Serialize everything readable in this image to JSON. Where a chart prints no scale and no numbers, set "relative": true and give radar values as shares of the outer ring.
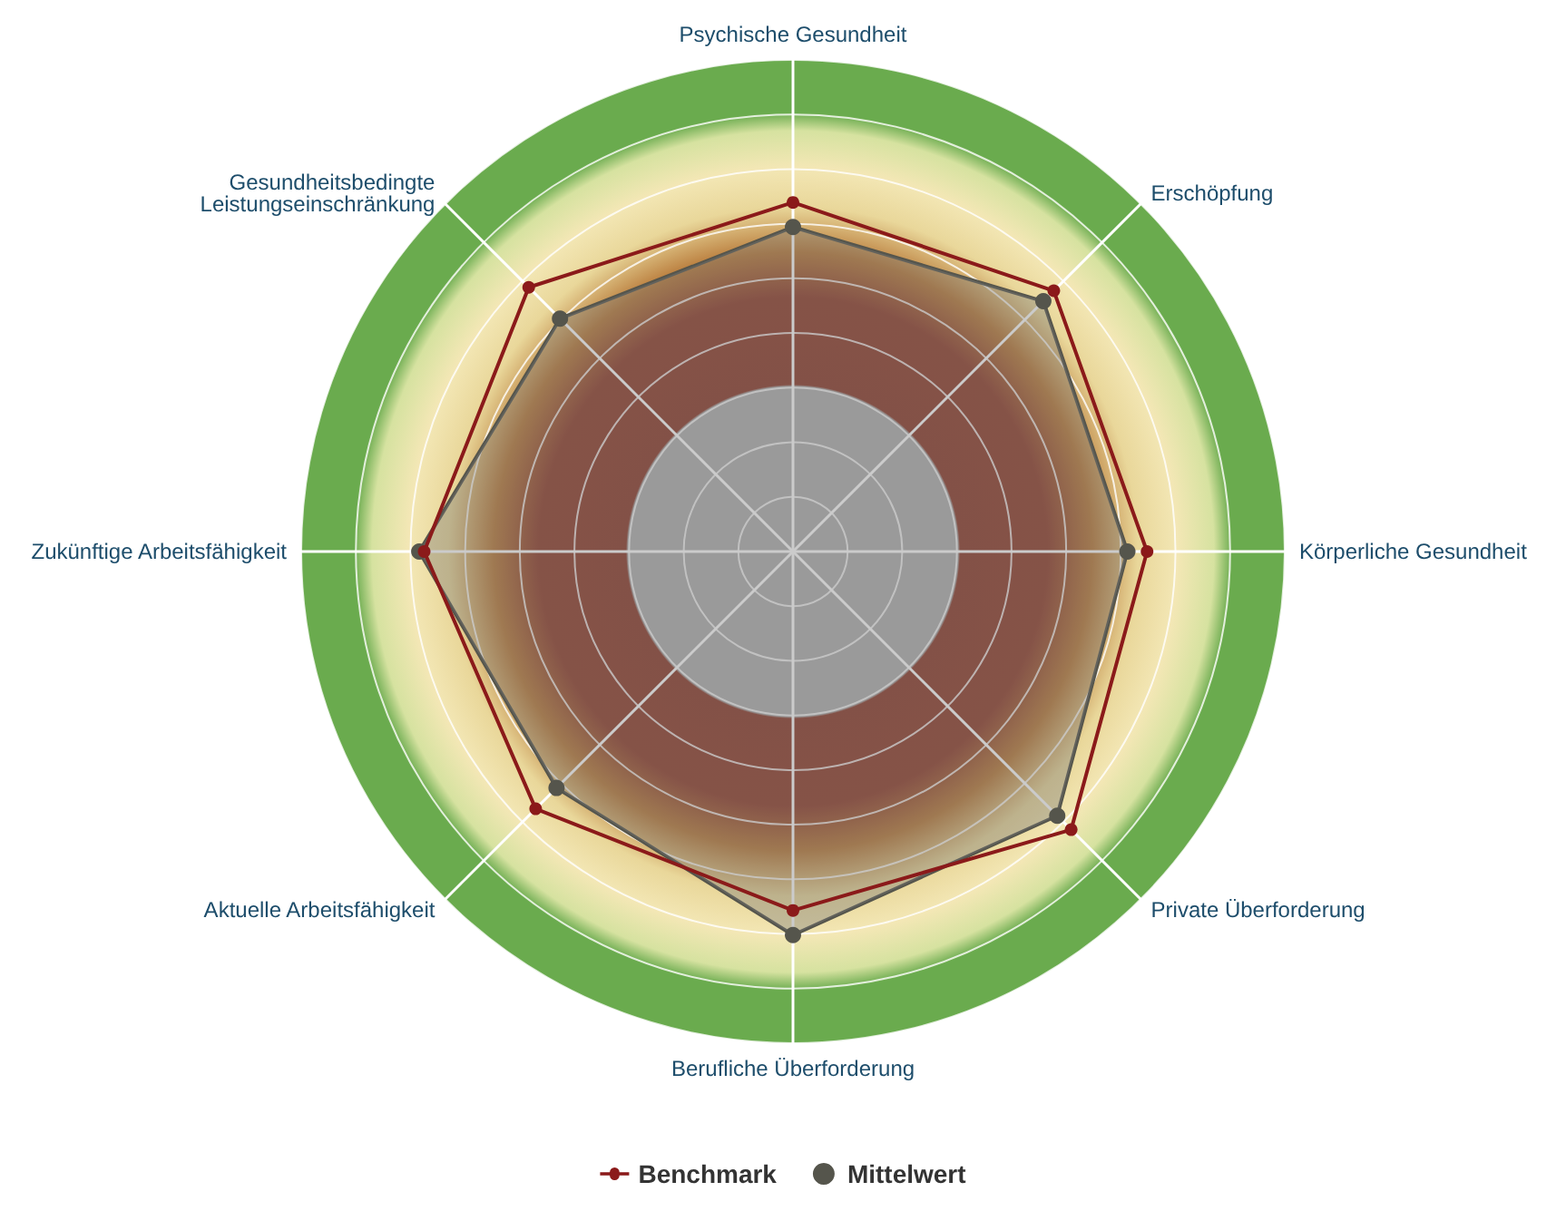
{
  "chart_data": {
    "type": "radar",
    "relative": true,
    "legend": "bottom",
    "marker": "circle",
    "categories": [
      "Psychische Gesundheit",
      "Erschöpfung",
      "Körperliche Gesundheit",
      "Private Überforderung",
      "Berufliche Überforderung",
      "Aktuelle Arbeitsfähigkeit",
      "Zukünftige Arbeitsfähigkeit",
      "Gesundheitsbedingte\nLeistungseinschränkung"
    ],
    "series": [
      {
        "name": "Benchmark",
        "color": "#8b1a1a",
        "values": [
          0.71,
          0.75,
          0.72,
          0.8,
          0.73,
          0.74,
          0.75,
          0.76
        ]
      },
      {
        "name": "Mittelwert",
        "color": "#55554c",
        "values": [
          0.66,
          0.72,
          0.68,
          0.76,
          0.78,
          0.68,
          0.76,
          0.67
        ]
      }
    ]
  }
}
